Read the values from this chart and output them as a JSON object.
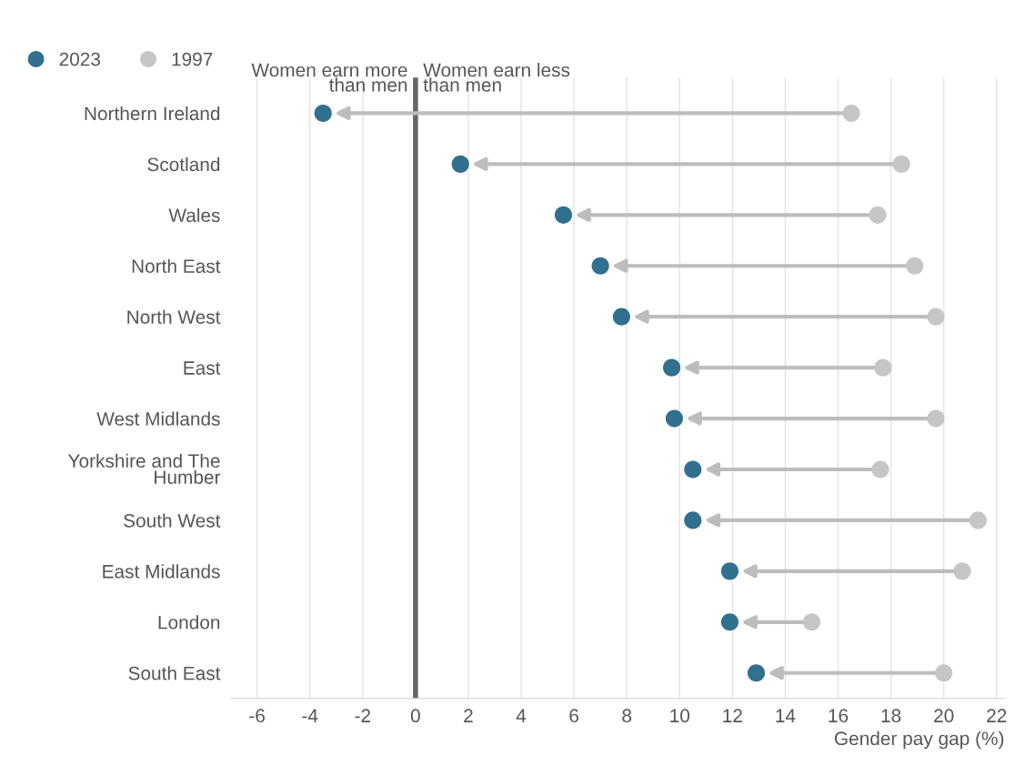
{
  "chart_data": {
    "type": "scatter",
    "orientation": "horizontal",
    "xlabel": "Gender pay gap (%)",
    "categories": [
      "Northern Ireland",
      "Scotland",
      "Wales",
      "North East",
      "North West",
      "East",
      "West Midlands",
      "Yorkshire and The Humber",
      "South West",
      "East Midlands",
      "London",
      "South East"
    ],
    "series": [
      {
        "name": "2023",
        "color": "#31708e",
        "values": [
          -3.5,
          1.7,
          5.6,
          7.0,
          7.8,
          9.7,
          9.8,
          10.5,
          10.5,
          11.9,
          11.9,
          12.9
        ]
      },
      {
        "name": "1997",
        "color": "#c6c6c6",
        "values": [
          16.5,
          18.4,
          17.5,
          18.9,
          19.7,
          17.7,
          19.7,
          17.6,
          21.3,
          20.7,
          15.0,
          20.0
        ]
      }
    ],
    "xlim": [
      -7,
      22.3
    ],
    "xticks": [
      -6,
      -4,
      -2,
      0,
      2,
      4,
      6,
      8,
      10,
      12,
      14,
      16,
      18,
      20,
      22
    ],
    "ref_lines": [
      {
        "axis": "x",
        "value": 0,
        "color": "#666666"
      }
    ],
    "annotations": [
      "Women earn more\nthan men",
      "Women earn less\nthan men"
    ],
    "grid": "x",
    "legend": "top left",
    "marker": "circle"
  }
}
